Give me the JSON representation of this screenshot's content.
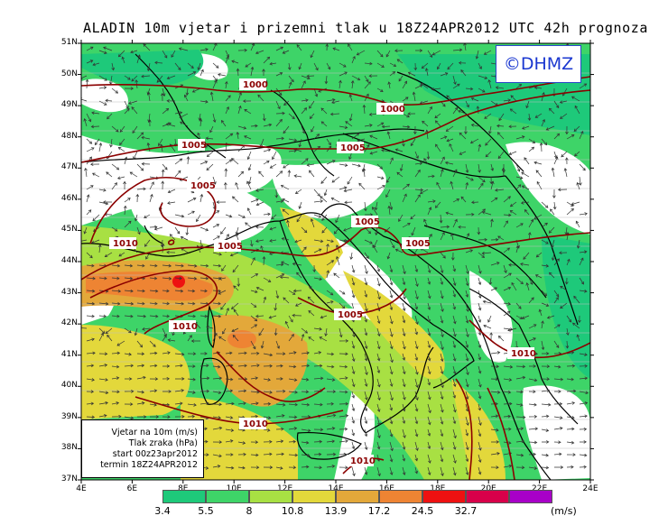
{
  "title": "ALADIN 10m vjetar i prizemni tlak u 18Z24APR2012 UTC 42h prognoza",
  "logo": "©DHMZ",
  "info_box": {
    "line1": "Vjetar na 10m (m/s)",
    "line2": "Tlak zraka (hPa)",
    "line3": "start 00z23apr2012",
    "line4": "termin 18Z24APR2012"
  },
  "lat_labels": [
    "51N",
    "50N",
    "49N",
    "48N",
    "47N",
    "46N",
    "45N",
    "44N",
    "43N",
    "42N",
    "41N",
    "40N",
    "39N",
    "38N",
    "37N"
  ],
  "lon_labels": [
    "4E",
    "6E",
    "8E",
    "10E",
    "12E",
    "14E",
    "16E",
    "18E",
    "20E",
    "22E",
    "24E"
  ],
  "legend": {
    "values": [
      "3.4",
      "5.5",
      "8",
      "10.8",
      "13.9",
      "17.2",
      "24.5",
      "32.7"
    ],
    "unit": "(m/s)",
    "colors": [
      "#1ec97a",
      "#3ed468",
      "#a8e043",
      "#e3d83b",
      "#e3a83a",
      "#ee8433",
      "#ee1111",
      "#d8004a",
      "#a800c8"
    ]
  },
  "isobars": [
    "1000",
    "1000",
    "1005",
    "1005",
    "1005",
    "1005",
    "1005",
    "1005",
    "1005",
    "1010",
    "1010",
    "1010",
    "1010",
    "1010"
  ],
  "colors": {
    "isobar": "#8b0000",
    "border": "#000000",
    "sea": "#ffffff"
  }
}
